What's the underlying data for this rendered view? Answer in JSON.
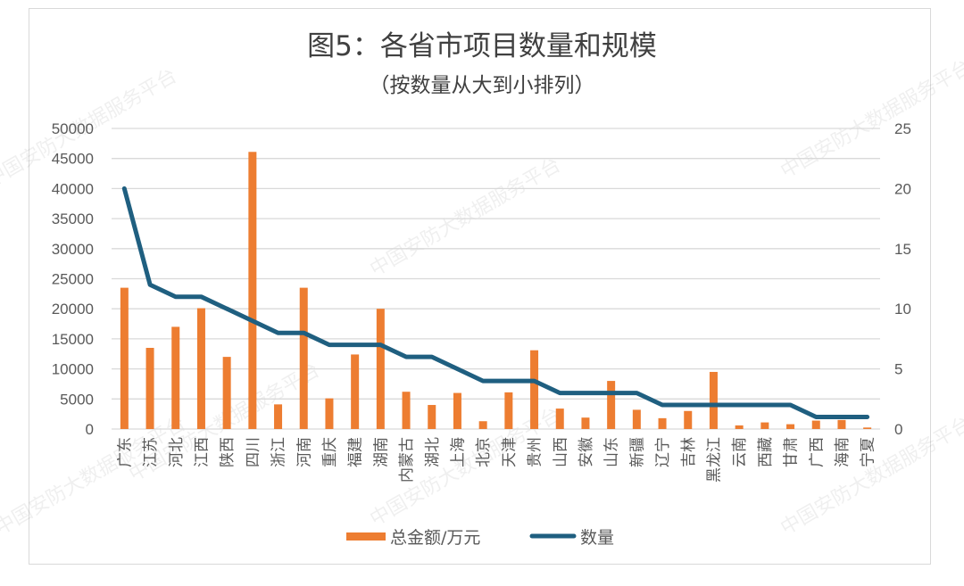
{
  "chart_data": {
    "type": "bar+line",
    "title": "图5：各省市项目数量和规模",
    "subtitle": "（按数量从大到小排列）",
    "categories": [
      "广东",
      "江苏",
      "河北",
      "江西",
      "陕西",
      "四川",
      "浙江",
      "河南",
      "重庆",
      "福建",
      "湖南",
      "内蒙古",
      "湖北",
      "上海",
      "北京",
      "天津",
      "贵州",
      "山西",
      "安徽",
      "山东",
      "新疆",
      "辽宁",
      "吉林",
      "黑龙江",
      "云南",
      "西藏",
      "甘肃",
      "广西",
      "海南",
      "宁夏"
    ],
    "series": [
      {
        "name": "总金额/万元",
        "type": "bar",
        "axis": "left",
        "color": "#ED7D31",
        "values": [
          23500,
          13500,
          17000,
          20100,
          12000,
          46100,
          4100,
          23500,
          5100,
          12400,
          20000,
          6200,
          4000,
          6000,
          1300,
          6100,
          13100,
          3400,
          1900,
          8000,
          3200,
          1800,
          3000,
          9500,
          600,
          1100,
          800,
          1400,
          1500,
          250
        ]
      },
      {
        "name": "数量",
        "type": "line",
        "axis": "right",
        "color": "#1F5F80",
        "values": [
          20,
          12,
          11,
          11,
          10,
          9,
          8,
          8,
          7,
          7,
          7,
          6,
          6,
          5,
          4,
          4,
          4,
          3,
          3,
          3,
          3,
          2,
          2,
          2,
          2,
          2,
          2,
          1,
          1,
          1
        ]
      }
    ],
    "left_axis": {
      "min": 0,
      "max": 50000,
      "step": 5000,
      "ticks": [
        "0",
        "5000",
        "10000",
        "15000",
        "20000",
        "25000",
        "30000",
        "35000",
        "40000",
        "45000",
        "50000"
      ]
    },
    "right_axis": {
      "min": 0,
      "max": 25,
      "step": 5,
      "ticks": [
        "0",
        "5",
        "10",
        "15",
        "20",
        "25"
      ]
    },
    "grid": true,
    "legend_position": "bottom",
    "xlabel": "",
    "ylabel": ""
  },
  "legend": {
    "bar_label": "总金额/万元",
    "line_label": "数量"
  },
  "watermark": "中国安防大数据服务平台"
}
